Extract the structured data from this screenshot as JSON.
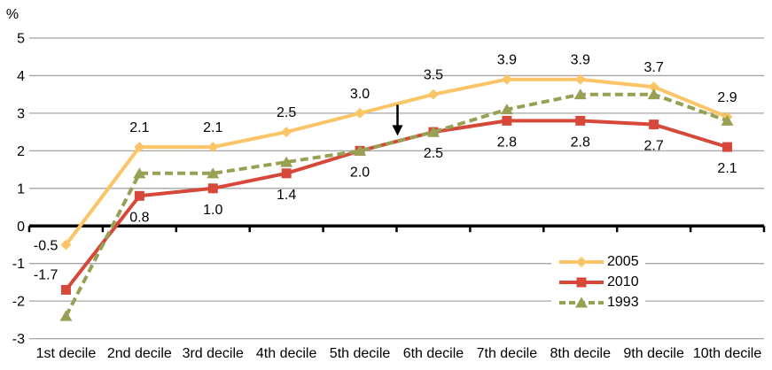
{
  "chart_data": {
    "type": "line",
    "title": "",
    "y_axis_unit": "%",
    "categories": [
      "1st decile",
      "2nd decile",
      "3rd decile",
      "4th decile",
      "5th decile",
      "6th decile",
      "7th decile",
      "8th decile",
      "9th decile",
      "10th decile"
    ],
    "ylim": [
      -3,
      5
    ],
    "yticks": [
      5,
      4,
      3,
      2,
      1,
      0,
      -1,
      -2,
      -3
    ],
    "grid": "horizontal-only",
    "series": [
      {
        "name": "2005",
        "color": "#FBC466",
        "marker": "diamond",
        "line_style": "solid",
        "values": [
          -0.5,
          2.1,
          2.1,
          2.5,
          3.0,
          3.5,
          3.9,
          3.9,
          3.7,
          2.9
        ],
        "data_labels": [
          "-0.5",
          "2.1",
          "2.1",
          "2.5",
          "3.0",
          "3.5",
          "3.9",
          "3.9",
          "3.7",
          "2.9"
        ],
        "label_placement": "above"
      },
      {
        "name": "2010",
        "color": "#D6493A",
        "marker": "square",
        "line_style": "solid",
        "values": [
          -1.7,
          0.8,
          1.0,
          1.4,
          2.0,
          2.5,
          2.8,
          2.8,
          2.7,
          2.1
        ],
        "data_labels": [
          "-1.7",
          "0.8",
          "1.0",
          "1.4",
          "2.0",
          "2.5",
          "2.8",
          "2.8",
          "2.7",
          "2.1"
        ],
        "label_placement": "below"
      },
      {
        "name": "1993",
        "color": "#98A054",
        "marker": "triangle",
        "line_style": "dashed",
        "values": [
          -2.4,
          1.4,
          1.4,
          1.7,
          2.0,
          2.5,
          3.1,
          3.5,
          3.5,
          2.8
        ],
        "data_labels": null,
        "label_placement": "none"
      }
    ],
    "annotation": {
      "type": "arrow-down",
      "between_categories": [
        "5th decile",
        "6th decile"
      ],
      "points_at_value": 2.4,
      "points_to": "crossing of 2010 and 1993 lines"
    },
    "legend": {
      "position": "middle-right",
      "entries": [
        "2005",
        "2010",
        "1993"
      ]
    },
    "colors": {
      "gridline": "#A5A5A5",
      "axis": "#000000",
      "text": "#000000",
      "background": "#FFFFFF"
    }
  }
}
